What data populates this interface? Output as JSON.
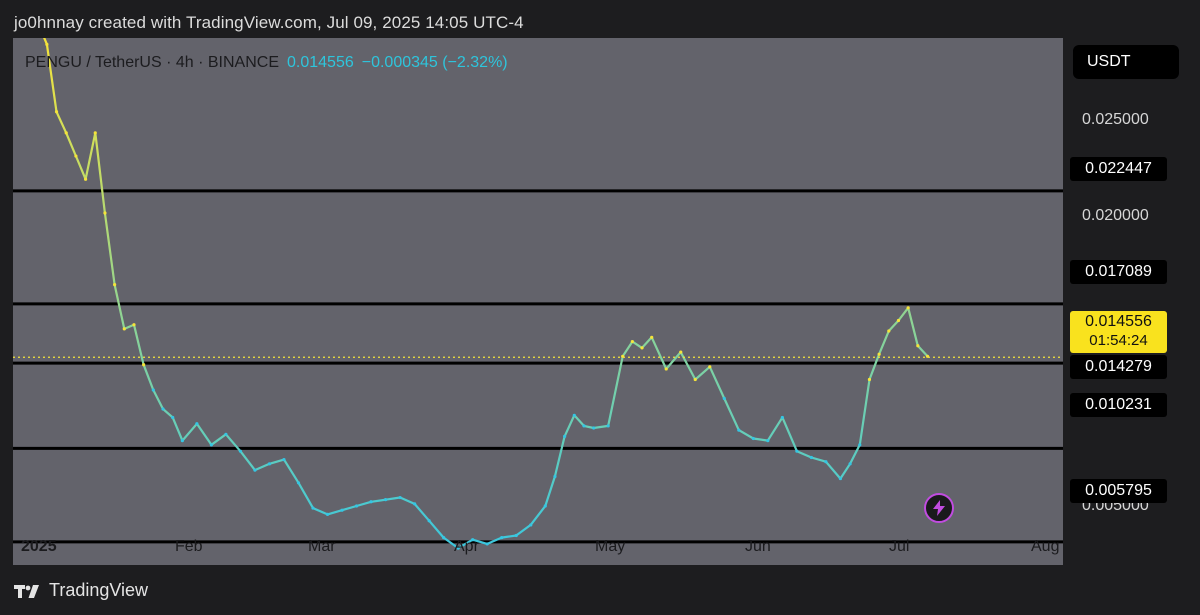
{
  "header": {
    "credit": "jo0hnnay created with TradingView.com, Jul 09, 2025 14:05 UTC-4"
  },
  "legend": {
    "symbol": "PENGU / TetherUS · 4h · BINANCE",
    "last": "0.014556",
    "change": "−0.000345 (−2.32%)"
  },
  "price_axis": {
    "unit": "USDT",
    "ticks": [
      "0.025000",
      "0.020000",
      "0.005000"
    ],
    "levels": [
      "0.022447",
      "0.017089",
      "0.014279",
      "0.010231",
      "0.005795"
    ],
    "current_price": "0.014556",
    "countdown": "01:54:24"
  },
  "time_axis": {
    "year": "2025",
    "months": [
      "Feb",
      "Mar",
      "Apr",
      "May",
      "Jun",
      "Jul",
      "Aug"
    ]
  },
  "brand": {
    "name": "TradingView"
  },
  "colors": {
    "background": "#63636b",
    "line_low": "#35c6e3",
    "line_high": "#f5e43a",
    "level_line": "#000000",
    "current_price_line": "#f5e43a"
  },
  "icons": {
    "alert": "lightning-icon",
    "brand": "tradingview-logo"
  },
  "chart_data": {
    "type": "line",
    "title": "PENGU / TetherUS · 4h · BINANCE",
    "xlabel": "",
    "ylabel": "",
    "x_range": [
      "2025-01-01",
      "2025-08-06"
    ],
    "ylim": [
      0.0047,
      0.0297
    ],
    "horizontal_levels": [
      0.022447,
      0.017089,
      0.014279,
      0.010231,
      0.005795
    ],
    "current_price": 0.014556,
    "series": [
      {
        "x": [
          "2025-01-06",
          "2025-01-08",
          "2025-01-10",
          "2025-01-12",
          "2025-01-14",
          "2025-01-16",
          "2025-01-18",
          "2025-01-20",
          "2025-01-22",
          "2025-01-24",
          "2025-01-26",
          "2025-01-28",
          "2025-01-30",
          "2025-02-01",
          "2025-02-03",
          "2025-02-05",
          "2025-02-08",
          "2025-02-11",
          "2025-02-14",
          "2025-02-17",
          "2025-02-20",
          "2025-02-23",
          "2025-02-26",
          "2025-03-01",
          "2025-03-04",
          "2025-03-07",
          "2025-03-10",
          "2025-03-13",
          "2025-03-16",
          "2025-03-19",
          "2025-03-22",
          "2025-03-25",
          "2025-03-28",
          "2025-03-31",
          "2025-04-03",
          "2025-04-06",
          "2025-04-09",
          "2025-04-12",
          "2025-04-15",
          "2025-04-18",
          "2025-04-21",
          "2025-04-23",
          "2025-04-25",
          "2025-04-27",
          "2025-04-29",
          "2025-05-01",
          "2025-05-04",
          "2025-05-07",
          "2025-05-09",
          "2025-05-11",
          "2025-05-13",
          "2025-05-16",
          "2025-05-19",
          "2025-05-22",
          "2025-05-25",
          "2025-05-28",
          "2025-05-31",
          "2025-06-03",
          "2025-06-06",
          "2025-06-09",
          "2025-06-12",
          "2025-06-15",
          "2025-06-18",
          "2025-06-21",
          "2025-06-23",
          "2025-06-25",
          "2025-06-27",
          "2025-06-29",
          "2025-07-01",
          "2025-07-03",
          "2025-07-05",
          "2025-07-07",
          "2025-07-09"
        ],
        "values": [
          0.0305,
          0.0294,
          0.0262,
          0.0252,
          0.0241,
          0.023,
          0.0252,
          0.0214,
          0.018,
          0.0159,
          0.0161,
          0.0142,
          0.013,
          0.0121,
          0.0117,
          0.0106,
          0.0114,
          0.0104,
          0.0109,
          0.0101,
          0.0092,
          0.0095,
          0.0097,
          0.0086,
          0.0074,
          0.0071,
          0.0073,
          0.0075,
          0.0077,
          0.0078,
          0.0079,
          0.0076,
          0.0068,
          0.006,
          0.0055,
          0.0059,
          0.0057,
          0.006,
          0.0061,
          0.0066,
          0.0075,
          0.0089,
          0.0108,
          0.0118,
          0.0113,
          0.0112,
          0.0113,
          0.0146,
          0.0153,
          0.015,
          0.0155,
          0.014,
          0.0148,
          0.0135,
          0.0141,
          0.0126,
          0.0111,
          0.0107,
          0.0106,
          0.0117,
          0.0101,
          0.0098,
          0.0096,
          0.0088,
          0.0095,
          0.0104,
          0.0135,
          0.0147,
          0.0158,
          0.0163,
          0.0169,
          0.0151,
          0.0146
        ]
      }
    ]
  }
}
